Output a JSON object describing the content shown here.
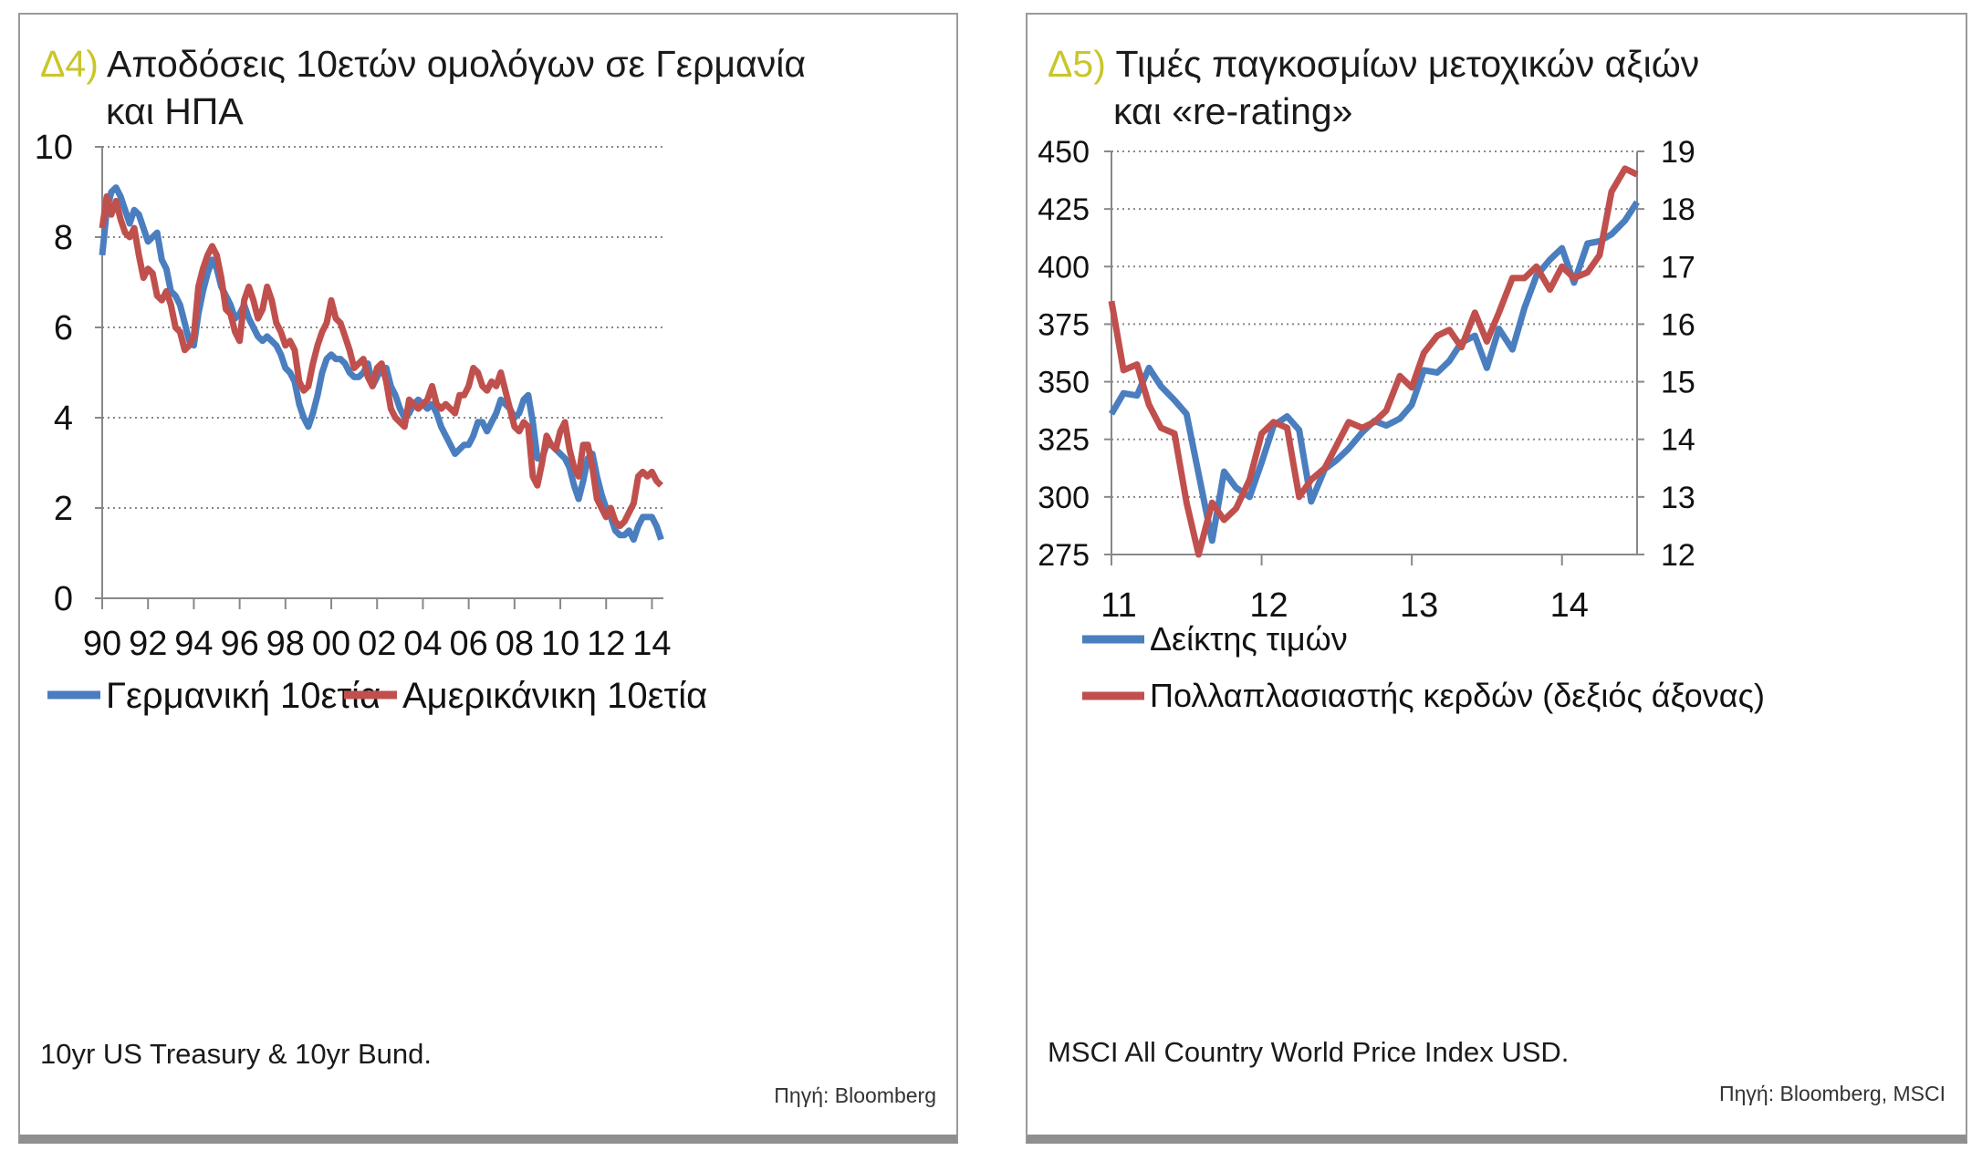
{
  "left": {
    "title_num": "Δ4)",
    "title_line1": "Αποδόσεις 10ετών ομολόγων σε Γερμανία",
    "title_line2": "και ΗΠΑ",
    "note": "10yr US Treasury & 10yr Bund.",
    "source": "Πηγή: Bloomberg"
  },
  "right": {
    "title_num": "Δ5)",
    "title_line1": "Τιμές παγκοσμίων μετοχικών αξιών",
    "title_line2": "και «re-rating»",
    "note": "MSCI All Country World Price Index USD.",
    "source": "Πηγή: Bloomberg, MSCI"
  },
  "chart_data": [
    {
      "type": "line",
      "x_tick_labels": [
        "90",
        "92",
        "94",
        "96",
        "98",
        "00",
        "02",
        "04",
        "06",
        "08",
        "10",
        "12",
        "14"
      ],
      "xlim": [
        1990,
        2014.5
      ],
      "ylim": [
        0,
        10
      ],
      "y_ticks": [
        0,
        2,
        4,
        6,
        8,
        10
      ],
      "grid": "dotted horizontal",
      "legend": "bottom",
      "series": [
        {
          "name": "Γερμανική 10ετία",
          "color": "#4a7ebf",
          "x": [
            1990.0,
            1990.2,
            1990.4,
            1990.6,
            1990.8,
            1991.0,
            1991.2,
            1991.4,
            1991.6,
            1991.8,
            1992.0,
            1992.2,
            1992.4,
            1992.6,
            1992.8,
            1993.0,
            1993.2,
            1993.4,
            1993.6,
            1993.8,
            1994.0,
            1994.2,
            1994.4,
            1994.6,
            1994.8,
            1995.0,
            1995.2,
            1995.4,
            1995.6,
            1995.8,
            1996.0,
            1996.2,
            1996.4,
            1996.6,
            1996.8,
            1997.0,
            1997.2,
            1997.4,
            1997.6,
            1997.8,
            1998.0,
            1998.2,
            1998.4,
            1998.6,
            1998.8,
            1999.0,
            1999.2,
            1999.4,
            1999.6,
            1999.8,
            2000.0,
            2000.2,
            2000.4,
            2000.6,
            2000.8,
            2001.0,
            2001.2,
            2001.4,
            2001.6,
            2001.8,
            2002.0,
            2002.2,
            2002.4,
            2002.6,
            2002.8,
            2003.0,
            2003.2,
            2003.4,
            2003.6,
            2003.8,
            2004.0,
            2004.2,
            2004.4,
            2004.6,
            2004.8,
            2005.0,
            2005.2,
            2005.4,
            2005.6,
            2005.8,
            2006.0,
            2006.2,
            2006.4,
            2006.6,
            2006.8,
            2007.0,
            2007.2,
            2007.4,
            2007.6,
            2007.8,
            2008.0,
            2008.2,
            2008.4,
            2008.6,
            2008.8,
            2009.0,
            2009.2,
            2009.4,
            2009.6,
            2009.8,
            2010.0,
            2010.2,
            2010.4,
            2010.6,
            2010.8,
            2011.0,
            2011.2,
            2011.4,
            2011.6,
            2011.8,
            2012.0,
            2012.2,
            2012.4,
            2012.6,
            2012.8,
            2013.0,
            2013.2,
            2013.4,
            2013.6,
            2013.8,
            2014.0,
            2014.2,
            2014.4
          ],
          "values": [
            7.6,
            8.6,
            9.0,
            9.1,
            8.9,
            8.6,
            8.3,
            8.6,
            8.5,
            8.2,
            7.9,
            8.0,
            8.1,
            7.5,
            7.3,
            6.8,
            6.7,
            6.5,
            6.1,
            5.7,
            5.6,
            6.3,
            6.8,
            7.2,
            7.5,
            7.3,
            6.9,
            6.7,
            6.5,
            6.2,
            6.3,
            6.5,
            6.2,
            6.0,
            5.8,
            5.7,
            5.8,
            5.7,
            5.6,
            5.4,
            5.1,
            5.0,
            4.8,
            4.3,
            4.0,
            3.8,
            4.1,
            4.5,
            5.0,
            5.3,
            5.4,
            5.3,
            5.3,
            5.2,
            5.0,
            4.9,
            4.9,
            5.0,
            5.2,
            4.7,
            4.9,
            5.1,
            5.1,
            4.7,
            4.5,
            4.2,
            4.0,
            4.1,
            4.3,
            4.4,
            4.3,
            4.2,
            4.3,
            4.1,
            3.8,
            3.6,
            3.4,
            3.2,
            3.3,
            3.4,
            3.4,
            3.6,
            3.9,
            3.9,
            3.7,
            3.9,
            4.1,
            4.4,
            4.3,
            4.2,
            4.0,
            4.1,
            4.4,
            4.5,
            3.9,
            3.1,
            3.1,
            3.4,
            3.4,
            3.3,
            3.2,
            3.1,
            2.9,
            2.5,
            2.2,
            2.6,
            3.1,
            3.2,
            2.7,
            2.3,
            2.0,
            1.8,
            1.5,
            1.4,
            1.4,
            1.5,
            1.3,
            1.6,
            1.8,
            1.8,
            1.8,
            1.6,
            1.3
          ]
        },
        {
          "name": "Αμερικάνικη 10ετία",
          "color": "#c0504d",
          "x": [
            1990.0,
            1990.2,
            1990.4,
            1990.6,
            1990.8,
            1991.0,
            1991.2,
            1991.4,
            1991.6,
            1991.8,
            1992.0,
            1992.2,
            1992.4,
            1992.6,
            1992.8,
            1993.0,
            1993.2,
            1993.4,
            1993.6,
            1993.8,
            1994.0,
            1994.2,
            1994.4,
            1994.6,
            1994.8,
            1995.0,
            1995.2,
            1995.4,
            1995.6,
            1995.8,
            1996.0,
            1996.2,
            1996.4,
            1996.6,
            1996.8,
            1997.0,
            1997.2,
            1997.4,
            1997.6,
            1997.8,
            1998.0,
            1998.2,
            1998.4,
            1998.6,
            1998.8,
            1999.0,
            1999.2,
            1999.4,
            1999.6,
            1999.8,
            2000.0,
            2000.2,
            2000.4,
            2000.6,
            2000.8,
            2001.0,
            2001.2,
            2001.4,
            2001.6,
            2001.8,
            2002.0,
            2002.2,
            2002.4,
            2002.6,
            2002.8,
            2003.0,
            2003.2,
            2003.4,
            2003.6,
            2003.8,
            2004.0,
            2004.2,
            2004.4,
            2004.6,
            2004.8,
            2005.0,
            2005.2,
            2005.4,
            2005.6,
            2005.8,
            2006.0,
            2006.2,
            2006.4,
            2006.6,
            2006.8,
            2007.0,
            2007.2,
            2007.4,
            2007.6,
            2007.8,
            2008.0,
            2008.2,
            2008.4,
            2008.6,
            2008.8,
            2009.0,
            2009.2,
            2009.4,
            2009.6,
            2009.8,
            2010.0,
            2010.2,
            2010.4,
            2010.6,
            2010.8,
            2011.0,
            2011.2,
            2011.4,
            2011.6,
            2011.8,
            2012.0,
            2012.2,
            2012.4,
            2012.6,
            2012.8,
            2013.0,
            2013.2,
            2013.4,
            2013.6,
            2013.8,
            2014.0,
            2014.2,
            2014.4
          ],
          "values": [
            8.2,
            8.9,
            8.5,
            8.8,
            8.4,
            8.1,
            8.0,
            8.2,
            7.6,
            7.1,
            7.3,
            7.2,
            6.7,
            6.6,
            6.8,
            6.5,
            6.0,
            5.9,
            5.5,
            5.6,
            5.8,
            6.9,
            7.3,
            7.6,
            7.8,
            7.6,
            7.1,
            6.4,
            6.3,
            5.9,
            5.7,
            6.6,
            6.9,
            6.6,
            6.2,
            6.4,
            6.9,
            6.6,
            6.1,
            5.9,
            5.6,
            5.7,
            5.5,
            4.8,
            4.6,
            4.7,
            5.2,
            5.6,
            5.9,
            6.1,
            6.6,
            6.2,
            6.1,
            5.8,
            5.5,
            5.1,
            5.2,
            5.3,
            4.9,
            4.7,
            5.1,
            5.2,
            4.8,
            4.2,
            4.0,
            3.9,
            3.8,
            4.4,
            4.3,
            4.2,
            4.3,
            4.4,
            4.7,
            4.3,
            4.2,
            4.3,
            4.2,
            4.1,
            4.5,
            4.5,
            4.7,
            5.1,
            5.0,
            4.7,
            4.6,
            4.8,
            4.7,
            5.0,
            4.6,
            4.2,
            3.8,
            3.7,
            3.9,
            3.8,
            2.7,
            2.5,
            3.0,
            3.6,
            3.4,
            3.3,
            3.7,
            3.9,
            3.3,
            2.9,
            2.7,
            3.4,
            3.4,
            2.9,
            2.2,
            2.0,
            1.8,
            2.0,
            1.7,
            1.6,
            1.7,
            1.9,
            2.1,
            2.7,
            2.8,
            2.7,
            2.8,
            2.6,
            2.5
          ]
        }
      ]
    },
    {
      "type": "line",
      "x_tick_labels": [
        "11",
        "12",
        "13",
        "14"
      ],
      "xlim": [
        2011,
        2014.5
      ],
      "ylim": [
        275,
        450
      ],
      "y_ticks": [
        275,
        300,
        325,
        350,
        375,
        400,
        425,
        450
      ],
      "y2lim": [
        12,
        19
      ],
      "y2_ticks": [
        12,
        13,
        14,
        15,
        16,
        17,
        18,
        19
      ],
      "grid": "dotted horizontal",
      "legend": "bottom",
      "series": [
        {
          "name": "Δείκτης τιμών",
          "color": "#4a7ebf",
          "axis": "left",
          "x": [
            2011.0,
            2011.08,
            2011.17,
            2011.25,
            2011.33,
            2011.42,
            2011.5,
            2011.58,
            2011.67,
            2011.75,
            2011.83,
            2011.92,
            2012.0,
            2012.08,
            2012.17,
            2012.25,
            2012.33,
            2012.42,
            2012.5,
            2012.58,
            2012.67,
            2012.75,
            2012.83,
            2012.92,
            2013.0,
            2013.08,
            2013.17,
            2013.25,
            2013.33,
            2013.42,
            2013.5,
            2013.58,
            2013.67,
            2013.75,
            2013.83,
            2013.92,
            2014.0,
            2014.08,
            2014.17,
            2014.25,
            2014.33,
            2014.42,
            2014.5
          ],
          "values": [
            336,
            345,
            344,
            356,
            348,
            342,
            336,
            310,
            281,
            311,
            304,
            300,
            315,
            331,
            335,
            329,
            298,
            312,
            316,
            321,
            328,
            333,
            331,
            334,
            340,
            355,
            354,
            359,
            367,
            370,
            356,
            373,
            364,
            382,
            396,
            403,
            408,
            393,
            410,
            411,
            414,
            420,
            428
          ]
        },
        {
          "name": "Πολλαπλασιαστής κερδών (δεξιός άξονας)",
          "color": "#c0504d",
          "axis": "right",
          "x": [
            2011.0,
            2011.08,
            2011.17,
            2011.25,
            2011.33,
            2011.42,
            2011.5,
            2011.58,
            2011.67,
            2011.75,
            2011.83,
            2011.92,
            2012.0,
            2012.08,
            2012.17,
            2012.25,
            2012.33,
            2012.42,
            2012.5,
            2012.58,
            2012.67,
            2012.75,
            2012.83,
            2012.92,
            2013.0,
            2013.08,
            2013.17,
            2013.25,
            2013.33,
            2013.42,
            2013.5,
            2013.58,
            2013.67,
            2013.75,
            2013.83,
            2013.92,
            2014.0,
            2014.08,
            2014.17,
            2014.25,
            2014.33,
            2014.42,
            2014.5
          ],
          "values": [
            16.4,
            15.2,
            15.3,
            14.6,
            14.2,
            14.1,
            12.9,
            12.0,
            12.9,
            12.6,
            12.8,
            13.3,
            14.1,
            14.3,
            14.2,
            13.0,
            13.3,
            13.5,
            13.9,
            14.3,
            14.2,
            14.3,
            14.5,
            15.1,
            14.9,
            15.5,
            15.8,
            15.9,
            15.6,
            16.2,
            15.7,
            16.2,
            16.8,
            16.8,
            17.0,
            16.6,
            17.0,
            16.8,
            16.9,
            17.2,
            18.3,
            18.7,
            18.6
          ]
        }
      ]
    }
  ]
}
